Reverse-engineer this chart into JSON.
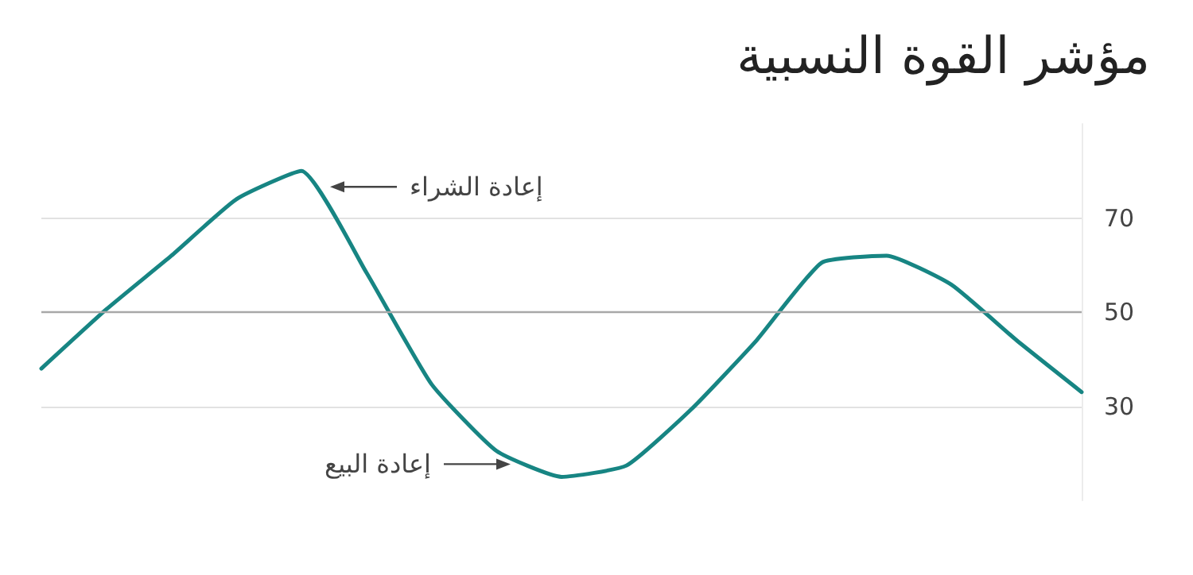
{
  "chart_data": {
    "type": "line",
    "title": "مؤشر القوة النسبية",
    "categories": [
      null,
      null,
      null,
      null,
      null,
      null,
      null,
      null,
      null,
      null,
      null,
      null,
      null,
      null,
      null,
      null,
      null
    ],
    "values": [
      38,
      50.6,
      62,
      74,
      80,
      58.4,
      34.7,
      20.5,
      15,
      17.4,
      29.4,
      44,
      60.5,
      62,
      55.8,
      44,
      33
    ],
    "color": "#178583",
    "ylim": [
      10,
      90
    ],
    "yticks": [
      30,
      50,
      70
    ],
    "grid": "y",
    "marker": "none",
    "line_style": "solid",
    "tick_labels": "y",
    "ref_lines": [
      {
        "axis": "y",
        "value": 50,
        "color": "#a8a8a8"
      }
    ],
    "annotations": [
      "إعادة الشراء",
      "إعادة البيع"
    ]
  }
}
